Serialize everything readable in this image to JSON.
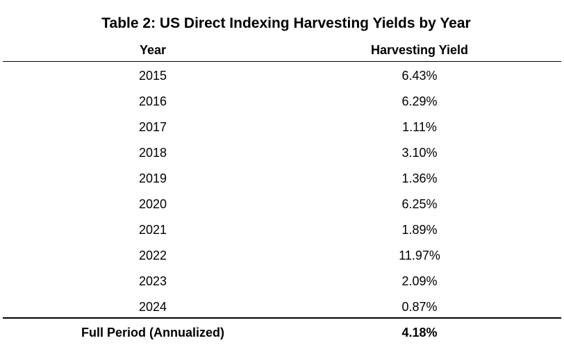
{
  "table": {
    "title": "Table 2: US Direct Indexing Harvesting Yields by Year",
    "columns": {
      "year": "Year",
      "yield": "Harvesting Yield"
    },
    "rows": [
      {
        "year": "2015",
        "yield": "6.43%"
      },
      {
        "year": "2016",
        "yield": "6.29%"
      },
      {
        "year": "2017",
        "yield": "1.11%"
      },
      {
        "year": "2018",
        "yield": "3.10%"
      },
      {
        "year": "2019",
        "yield": "1.36%"
      },
      {
        "year": "2020",
        "yield": "6.25%"
      },
      {
        "year": "2021",
        "yield": "1.89%"
      },
      {
        "year": "2022",
        "yield": "11.97%"
      },
      {
        "year": "2023",
        "yield": "2.09%"
      },
      {
        "year": "2024",
        "yield": "0.87%"
      }
    ],
    "total": {
      "label": "Full Period (Annualized)",
      "yield": "4.18%"
    }
  }
}
